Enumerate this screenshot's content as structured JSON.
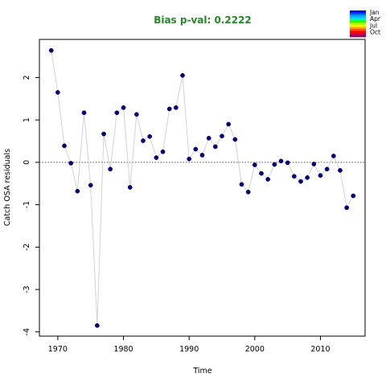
{
  "chart_data": {
    "type": "scatter",
    "title": "Bias p-val: 0.2222",
    "title_color": "#228b22",
    "xlabel": "Time",
    "ylabel": "Catch OSA residuals",
    "xlim": [
      1967.2,
      2016.8
    ],
    "ylim": [
      -4.1,
      2.9
    ],
    "xticks": [
      1970,
      1980,
      1990,
      2000,
      2010
    ],
    "yticks": [
      -4,
      -3,
      -2,
      -1,
      0,
      1,
      2
    ],
    "reference_line": {
      "y": 0,
      "style": "dotted"
    },
    "connect_line_color": "#d3d3d3",
    "point_color": "#00008b",
    "grid": false,
    "legend": {
      "placement": "top-right",
      "entries": [
        "Jan",
        "Apr",
        "Jul",
        "Oct"
      ],
      "colors": [
        "#0000ff",
        "#0044ff",
        "#0099ff",
        "#00ccff",
        "#00ff88",
        "#22ff00",
        "#aaff00",
        "#ffff00",
        "#ffaa00",
        "#ff5500",
        "#ff0000",
        "#cc0044",
        "#990066"
      ]
    },
    "x": [
      1969,
      1970,
      1971,
      1972,
      1973,
      1974,
      1975,
      1976,
      1977,
      1978,
      1979,
      1980,
      1981,
      1982,
      1983,
      1984,
      1985,
      1986,
      1987,
      1988,
      1989,
      1990,
      1991,
      1992,
      1993,
      1994,
      1995,
      1996,
      1997,
      1998,
      1999,
      2000,
      2001,
      2002,
      2003,
      2004,
      2005,
      2006,
      2007,
      2008,
      2009,
      2010,
      2011,
      2012,
      2013,
      2014,
      2015
    ],
    "y": [
      2.64,
      1.65,
      0.39,
      -0.02,
      -0.68,
      1.17,
      -0.54,
      -3.85,
      0.67,
      -0.16,
      1.17,
      1.29,
      -0.59,
      1.13,
      0.51,
      0.61,
      0.11,
      0.25,
      1.26,
      1.29,
      2.05,
      0.08,
      0.31,
      0.17,
      0.57,
      0.37,
      0.62,
      0.9,
      0.54,
      -0.52,
      -0.7,
      -0.06,
      -0.26,
      -0.4,
      -0.05,
      0.03,
      -0.01,
      -0.33,
      -0.45,
      -0.36,
      -0.04,
      -0.31,
      -0.16,
      0.15,
      -0.19,
      -1.07,
      -0.79
    ]
  }
}
